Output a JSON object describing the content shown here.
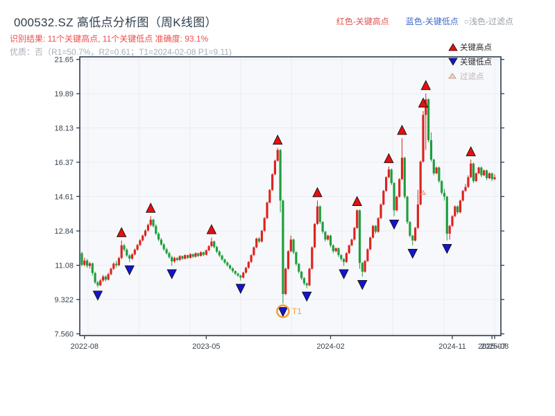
{
  "header": {
    "title": "000532.SZ 高低点分析图（周K线图）",
    "subtitle_result": "识别结果: 11个关键高点, 11个关键低点  准确度: 93.1%",
    "subtitle_quality": "优质：否（R1=50.7%，R2=0.61；T1=2024-02-08 P1=9.11)",
    "legend_inline": [
      {
        "label": "红色-关键高点",
        "color": "#e05252"
      },
      {
        "label": "蓝色-关键低点",
        "color": "#3f6bc9"
      },
      {
        "label": "○浅色-过滤点",
        "color": "#98a1a8"
      }
    ]
  },
  "legend_box": {
    "items": [
      {
        "label": "关键高点",
        "symbol": "up-triangle",
        "color": "#e80e0e"
      },
      {
        "label": "关键低点",
        "symbol": "down-triangle",
        "color": "#1414cf"
      },
      {
        "label": "过滤点",
        "symbol": "up-triangle-light",
        "color": "#f6cfc2"
      }
    ]
  },
  "colors": {
    "up": "#dc2420",
    "down": "#1f9e3d",
    "key_high": "#e80e0e",
    "key_low": "#1414cf",
    "filtered_fill": "#f6cfc2",
    "filtered_edge": "#d98c7a",
    "marker_edge": "#111111",
    "annotation": "#f0a23b",
    "grid": "#e9ecf1",
    "spine": "#2b3b4e",
    "plot_bg": "#f7f8fb",
    "axis_text": "#36424e"
  },
  "chart_data": {
    "type": "candlestick",
    "title": "000532.SZ 高低点分析图（周K线图）",
    "period": "周K线",
    "ylim": [
      7.47,
      21.78
    ],
    "y_ticks": [
      {
        "v": 21.65,
        "label": "21.65"
      },
      {
        "v": 19.89,
        "label": "19.89"
      },
      {
        "v": 18.13,
        "label": "18.13"
      },
      {
        "v": 16.37,
        "label": "16.37"
      },
      {
        "v": 14.61,
        "label": "14.61"
      },
      {
        "v": 12.84,
        "label": "12.84"
      },
      {
        "v": 11.08,
        "label": "11.08"
      },
      {
        "v": 9.322,
        "label": "9.322"
      },
      {
        "v": 7.56,
        "label": "7.560"
      }
    ],
    "x_ticks": [
      {
        "i": 1,
        "label": "2022-08"
      },
      {
        "i": 47,
        "label": "2023-05"
      },
      {
        "i": 94,
        "label": "2024-02"
      },
      {
        "i": 140,
        "label": "2024-11"
      },
      {
        "i": 155,
        "label": "2025-07"
      },
      {
        "i": 156,
        "label": "2025-08"
      }
    ],
    "x_gridlines": [
      2.3,
      21.6,
      40.8,
      60,
      79.2,
      98.3,
      117.6,
      136.8,
      156
    ],
    "candles": [
      [
        11.7,
        11.78,
        11.02,
        11.1
      ],
      [
        11.1,
        11.48,
        11.02,
        11.32
      ],
      [
        11.32,
        11.4,
        10.95,
        11.05
      ],
      [
        11.05,
        11.25,
        10.92,
        11.18
      ],
      [
        11.18,
        11.22,
        10.55,
        10.68
      ],
      [
        10.68,
        10.75,
        10.12,
        10.2
      ],
      [
        10.2,
        10.28,
        9.95,
        10.05
      ],
      [
        10.05,
        10.38,
        10.0,
        10.3
      ],
      [
        10.3,
        10.58,
        10.22,
        10.5
      ],
      [
        10.5,
        10.56,
        10.24,
        10.34
      ],
      [
        10.34,
        10.7,
        10.3,
        10.62
      ],
      [
        10.62,
        10.96,
        10.56,
        10.9
      ],
      [
        10.9,
        11.24,
        10.84,
        11.16
      ],
      [
        11.16,
        11.3,
        10.98,
        11.08
      ],
      [
        11.08,
        11.52,
        11.04,
        11.45
      ],
      [
        11.45,
        12.35,
        11.4,
        12.1
      ],
      [
        12.1,
        12.18,
        11.78,
        11.88
      ],
      [
        11.88,
        11.95,
        11.5,
        11.58
      ],
      [
        11.58,
        11.65,
        11.25,
        11.42
      ],
      [
        11.42,
        11.7,
        11.36,
        11.64
      ],
      [
        11.64,
        11.94,
        11.58,
        11.88
      ],
      [
        11.88,
        12.18,
        11.82,
        12.12
      ],
      [
        12.12,
        12.42,
        12.06,
        12.36
      ],
      [
        12.36,
        12.66,
        12.3,
        12.6
      ],
      [
        12.6,
        12.92,
        12.54,
        12.86
      ],
      [
        12.86,
        13.22,
        12.8,
        13.15
      ],
      [
        13.15,
        13.6,
        13.08,
        13.42
      ],
      [
        13.42,
        13.48,
        13.02,
        13.1
      ],
      [
        13.1,
        13.18,
        12.62,
        12.7
      ],
      [
        12.7,
        12.78,
        12.32,
        12.4
      ],
      [
        12.4,
        12.48,
        12.08,
        12.15
      ],
      [
        12.15,
        12.22,
        11.82,
        11.9
      ],
      [
        11.9,
        11.98,
        11.62,
        11.7
      ],
      [
        11.7,
        11.78,
        11.42,
        11.5
      ],
      [
        11.5,
        11.58,
        11.05,
        11.28
      ],
      [
        11.28,
        11.52,
        11.2,
        11.45
      ],
      [
        11.45,
        11.5,
        11.28,
        11.35
      ],
      [
        11.35,
        11.6,
        11.3,
        11.55
      ],
      [
        11.55,
        11.58,
        11.35,
        11.42
      ],
      [
        11.42,
        11.65,
        11.38,
        11.6
      ],
      [
        11.6,
        11.62,
        11.4,
        11.46
      ],
      [
        11.46,
        11.7,
        11.42,
        11.65
      ],
      [
        11.65,
        11.68,
        11.45,
        11.52
      ],
      [
        11.52,
        11.75,
        11.48,
        11.7
      ],
      [
        11.7,
        11.72,
        11.5,
        11.56
      ],
      [
        11.56,
        11.8,
        11.52,
        11.75
      ],
      [
        11.75,
        11.78,
        11.55,
        11.62
      ],
      [
        11.62,
        11.9,
        11.58,
        11.85
      ],
      [
        11.85,
        12.12,
        11.8,
        12.06
      ],
      [
        12.06,
        12.5,
        12.0,
        12.3
      ],
      [
        12.3,
        12.35,
        11.95,
        12.02
      ],
      [
        12.02,
        12.08,
        11.7,
        11.78
      ],
      [
        11.78,
        11.85,
        11.5,
        11.58
      ],
      [
        11.58,
        11.62,
        11.3,
        11.38
      ],
      [
        11.38,
        11.42,
        11.15,
        11.22
      ],
      [
        11.22,
        11.28,
        11.0,
        11.08
      ],
      [
        11.08,
        11.12,
        10.85,
        10.92
      ],
      [
        10.92,
        10.98,
        10.7,
        10.78
      ],
      [
        10.78,
        10.82,
        10.58,
        10.65
      ],
      [
        10.65,
        10.7,
        10.48,
        10.55
      ],
      [
        10.55,
        10.6,
        10.3,
        10.45
      ],
      [
        10.45,
        10.75,
        10.4,
        10.7
      ],
      [
        10.7,
        11.0,
        10.65,
        10.95
      ],
      [
        10.95,
        11.3,
        10.9,
        11.25
      ],
      [
        11.25,
        11.65,
        11.2,
        11.6
      ],
      [
        11.6,
        12.05,
        11.55,
        12.0
      ],
      [
        12.0,
        12.5,
        11.95,
        12.45
      ],
      [
        12.45,
        12.52,
        12.22,
        12.3
      ],
      [
        12.3,
        12.9,
        12.25,
        12.85
      ],
      [
        12.85,
        13.55,
        12.8,
        13.5
      ],
      [
        13.5,
        14.35,
        13.45,
        14.3
      ],
      [
        14.3,
        15.0,
        14.25,
        14.95
      ],
      [
        14.95,
        15.8,
        14.9,
        15.75
      ],
      [
        15.75,
        16.5,
        15.7,
        16.45
      ],
      [
        16.45,
        17.1,
        16.4,
        17.0
      ],
      [
        17.0,
        17.05,
        13.8,
        14.4
      ],
      [
        14.4,
        14.45,
        9.11,
        9.6
      ],
      [
        9.6,
        10.95,
        9.55,
        10.9
      ],
      [
        10.9,
        11.85,
        10.85,
        11.8
      ],
      [
        11.8,
        12.6,
        11.75,
        12.4
      ],
      [
        12.4,
        12.45,
        11.65,
        11.75
      ],
      [
        11.75,
        11.8,
        11.05,
        11.15
      ],
      [
        11.15,
        11.2,
        10.65,
        10.75
      ],
      [
        10.75,
        10.8,
        10.32,
        10.42
      ],
      [
        10.42,
        10.48,
        10.05,
        10.15
      ],
      [
        10.15,
        10.2,
        9.9,
        10.05
      ],
      [
        10.05,
        10.95,
        10.0,
        10.9
      ],
      [
        10.9,
        12.05,
        10.85,
        12.0
      ],
      [
        12.0,
        13.25,
        11.95,
        13.2
      ],
      [
        13.2,
        14.4,
        13.15,
        14.1
      ],
      [
        14.1,
        14.15,
        13.2,
        13.3
      ],
      [
        13.3,
        13.35,
        12.7,
        12.8
      ],
      [
        12.8,
        12.85,
        12.3,
        12.4
      ],
      [
        12.4,
        12.65,
        12.35,
        12.6
      ],
      [
        12.6,
        12.65,
        12.0,
        12.1
      ],
      [
        12.1,
        12.15,
        11.7,
        11.8
      ],
      [
        11.8,
        12.0,
        11.75,
        11.95
      ],
      [
        11.95,
        12.0,
        11.5,
        11.6
      ],
      [
        11.6,
        11.65,
        11.3,
        11.4
      ],
      [
        11.4,
        11.45,
        11.05,
        11.25
      ],
      [
        11.25,
        11.75,
        11.2,
        11.7
      ],
      [
        11.7,
        12.15,
        11.65,
        12.1
      ],
      [
        12.1,
        12.45,
        12.05,
        12.4
      ],
      [
        12.4,
        13.05,
        12.35,
        13.0
      ],
      [
        13.0,
        13.95,
        12.95,
        13.9
      ],
      [
        13.9,
        13.95,
        10.9,
        11.2
      ],
      [
        11.2,
        11.25,
        10.5,
        10.75
      ],
      [
        10.75,
        11.35,
        10.7,
        11.3
      ],
      [
        11.3,
        11.95,
        11.25,
        11.9
      ],
      [
        11.9,
        12.55,
        11.85,
        12.5
      ],
      [
        12.5,
        13.15,
        12.45,
        13.1
      ],
      [
        13.1,
        13.15,
        12.7,
        12.8
      ],
      [
        12.8,
        13.55,
        12.75,
        13.5
      ],
      [
        13.5,
        14.25,
        13.45,
        14.2
      ],
      [
        14.2,
        14.95,
        14.15,
        14.9
      ],
      [
        14.9,
        15.65,
        14.85,
        15.6
      ],
      [
        15.6,
        16.15,
        15.55,
        16.0
      ],
      [
        16.0,
        16.05,
        15.2,
        15.3
      ],
      [
        15.3,
        15.35,
        13.6,
        13.9
      ],
      [
        13.9,
        14.65,
        13.85,
        14.6
      ],
      [
        14.6,
        15.55,
        14.55,
        15.5
      ],
      [
        15.5,
        17.6,
        15.45,
        16.6
      ],
      [
        16.6,
        16.65,
        14.5,
        14.6
      ],
      [
        14.6,
        14.65,
        13.2,
        13.3
      ],
      [
        13.3,
        13.35,
        12.5,
        12.6
      ],
      [
        12.6,
        12.65,
        12.1,
        12.35
      ],
      [
        12.35,
        13.05,
        12.3,
        13.0
      ],
      [
        13.0,
        14.95,
        12.95,
        14.2
      ],
      [
        14.2,
        16.45,
        14.15,
        16.4
      ],
      [
        16.4,
        19.0,
        16.35,
        18.8
      ],
      [
        18.8,
        19.9,
        17.0,
        19.6
      ],
      [
        19.6,
        19.65,
        17.4,
        17.5
      ],
      [
        17.5,
        17.9,
        16.4,
        16.5
      ],
      [
        16.5,
        16.55,
        15.7,
        15.8
      ],
      [
        15.8,
        16.15,
        15.75,
        16.1
      ],
      [
        16.1,
        16.15,
        15.3,
        15.4
      ],
      [
        15.4,
        15.45,
        14.7,
        14.8
      ],
      [
        14.8,
        15.0,
        14.4,
        14.6
      ],
      [
        14.6,
        14.65,
        12.35,
        12.7
      ],
      [
        12.7,
        13.15,
        12.4,
        13.1
      ],
      [
        13.1,
        13.65,
        13.05,
        13.6
      ],
      [
        13.6,
        14.15,
        13.55,
        14.1
      ],
      [
        14.1,
        14.15,
        13.7,
        13.8
      ],
      [
        13.8,
        14.45,
        13.75,
        14.4
      ],
      [
        14.4,
        14.95,
        14.35,
        14.9
      ],
      [
        14.9,
        15.25,
        14.85,
        15.1
      ],
      [
        15.1,
        15.7,
        15.05,
        15.6
      ],
      [
        15.6,
        16.5,
        15.55,
        16.3
      ],
      [
        16.3,
        16.35,
        15.3,
        15.4
      ],
      [
        15.4,
        15.85,
        15.35,
        15.8
      ],
      [
        15.8,
        16.15,
        15.75,
        16.1
      ],
      [
        16.1,
        16.15,
        15.6,
        15.7
      ],
      [
        15.7,
        16.0,
        15.65,
        15.95
      ],
      [
        15.95,
        16.0,
        15.45,
        15.55
      ],
      [
        15.55,
        15.85,
        15.5,
        15.8
      ],
      [
        15.8,
        15.85,
        15.4,
        15.5
      ],
      [
        15.5,
        15.75,
        15.45,
        15.6
      ]
    ],
    "key_highs": [
      {
        "i": 15,
        "p": 12.35
      },
      {
        "i": 26,
        "p": 13.6
      },
      {
        "i": 49,
        "p": 12.5
      },
      {
        "i": 74,
        "p": 17.1
      },
      {
        "i": 89,
        "p": 14.4
      },
      {
        "i": 104,
        "p": 13.95
      },
      {
        "i": 116,
        "p": 16.15
      },
      {
        "i": 121,
        "p": 17.6
      },
      {
        "i": 129,
        "p": 19.0
      },
      {
        "i": 130,
        "p": 19.9
      },
      {
        "i": 147,
        "p": 16.5
      }
    ],
    "key_lows": [
      {
        "i": 6,
        "p": 9.95
      },
      {
        "i": 18,
        "p": 11.25
      },
      {
        "i": 34,
        "p": 11.05
      },
      {
        "i": 60,
        "p": 10.3
      },
      {
        "i": 76,
        "p": 9.11
      },
      {
        "i": 85,
        "p": 9.9
      },
      {
        "i": 99,
        "p": 11.05
      },
      {
        "i": 106,
        "p": 10.5
      },
      {
        "i": 118,
        "p": 13.6
      },
      {
        "i": 125,
        "p": 12.1
      },
      {
        "i": 138,
        "p": 12.35
      }
    ],
    "filtered_points": [
      {
        "i": 129,
        "p": 14.8
      }
    ],
    "t1_annotation": {
      "i": 76,
      "p": 9.11,
      "label": "T1"
    }
  }
}
